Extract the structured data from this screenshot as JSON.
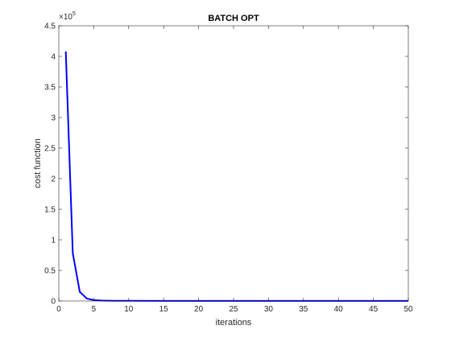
{
  "chart_data": {
    "type": "line",
    "title": "BATCH OPT",
    "xlabel": "iterations",
    "ylabel": "cost function",
    "xlim": [
      0,
      50
    ],
    "ylim": [
      0,
      4.5
    ],
    "y_exponent_label": "×10",
    "y_exponent_power": "5",
    "x_ticks": [
      "0",
      "5",
      "10",
      "15",
      "20",
      "25",
      "30",
      "35",
      "40",
      "45",
      "50"
    ],
    "y_ticks": [
      "0",
      "0.5",
      "1",
      "1.5",
      "2",
      "2.5",
      "3",
      "3.5",
      "4",
      "4.5"
    ],
    "grid": false,
    "series": [
      {
        "color": "#0000ff",
        "x": [
          1,
          2,
          3,
          4,
          5,
          6,
          7,
          8,
          9,
          10,
          15,
          20,
          25,
          30,
          35,
          40,
          45,
          50
        ],
        "y": [
          4.08,
          0.78,
          0.15,
          0.04,
          0.015,
          0.008,
          0.005,
          0.004,
          0.003,
          0.003,
          0.002,
          0.002,
          0.002,
          0.002,
          0.002,
          0.002,
          0.002,
          0.002
        ]
      }
    ]
  }
}
